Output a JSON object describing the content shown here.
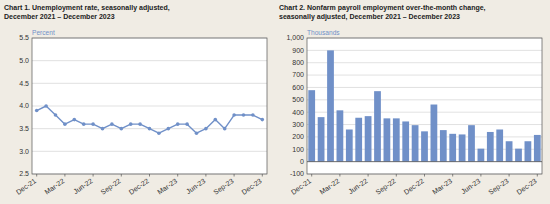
{
  "chart_data": [
    {
      "type": "line",
      "title": "Chart 1. Unemployment rate, seasonally adjusted,\nDecember 2021 – December 2023",
      "ylabel": "Percent",
      "categories": [
        "Dec-21",
        null,
        null,
        "Mar-22",
        null,
        null,
        "Jun-22",
        null,
        null,
        "Sep-22",
        null,
        null,
        "Dec-22",
        null,
        null,
        "Mar-23",
        null,
        null,
        "Jun-23",
        null,
        null,
        "Sep-23",
        null,
        null,
        "Dec-23"
      ],
      "values": [
        3.9,
        4.0,
        3.8,
        3.6,
        3.7,
        3.6,
        3.6,
        3.5,
        3.6,
        3.5,
        3.6,
        3.6,
        3.5,
        3.4,
        3.5,
        3.6,
        3.6,
        3.4,
        3.5,
        3.7,
        3.5,
        3.8,
        3.8,
        3.8,
        3.7
      ],
      "color": "#7090c8",
      "marker": "circle",
      "ylim": [
        2.5,
        5.5
      ],
      "yticks": [
        2.5,
        {
          "value": 3,
          "label": "3.0"
        },
        3.5,
        {
          "value": 4,
          "label": "4.0"
        },
        4.5,
        {
          "value": 5,
          "label": "5.0"
        },
        5.5
      ],
      "grid": true
    },
    {
      "type": "bar",
      "title": "Chart 2. Nonfarm payroll employment over-the-month change,\nseasonally adjusted, December 2021 – December 2023",
      "ylabel": "Thousands",
      "categories": [
        "Dec-21",
        null,
        null,
        "Mar-22",
        null,
        null,
        "Jun-22",
        null,
        null,
        "Sep-22",
        null,
        null,
        "Dec-22",
        null,
        null,
        "Mar-23",
        null,
        null,
        "Jun-23",
        null,
        null,
        "Sep-23",
        null,
        null,
        "Dec-23"
      ],
      "values": [
        578,
        360,
        900,
        415,
        260,
        355,
        368,
        570,
        350,
        350,
        325,
        295,
        245,
        462,
        255,
        225,
        220,
        295,
        105,
        240,
        260,
        165,
        105,
        165,
        216
      ],
      "color": "#7090c8",
      "ylim": [
        -100,
        1000
      ],
      "yticks": [
        -100,
        0,
        100,
        200,
        300,
        400,
        500,
        600,
        700,
        800,
        900,
        {
          "value": 1000,
          "label": "1,000"
        }
      ],
      "grid": true
    }
  ]
}
